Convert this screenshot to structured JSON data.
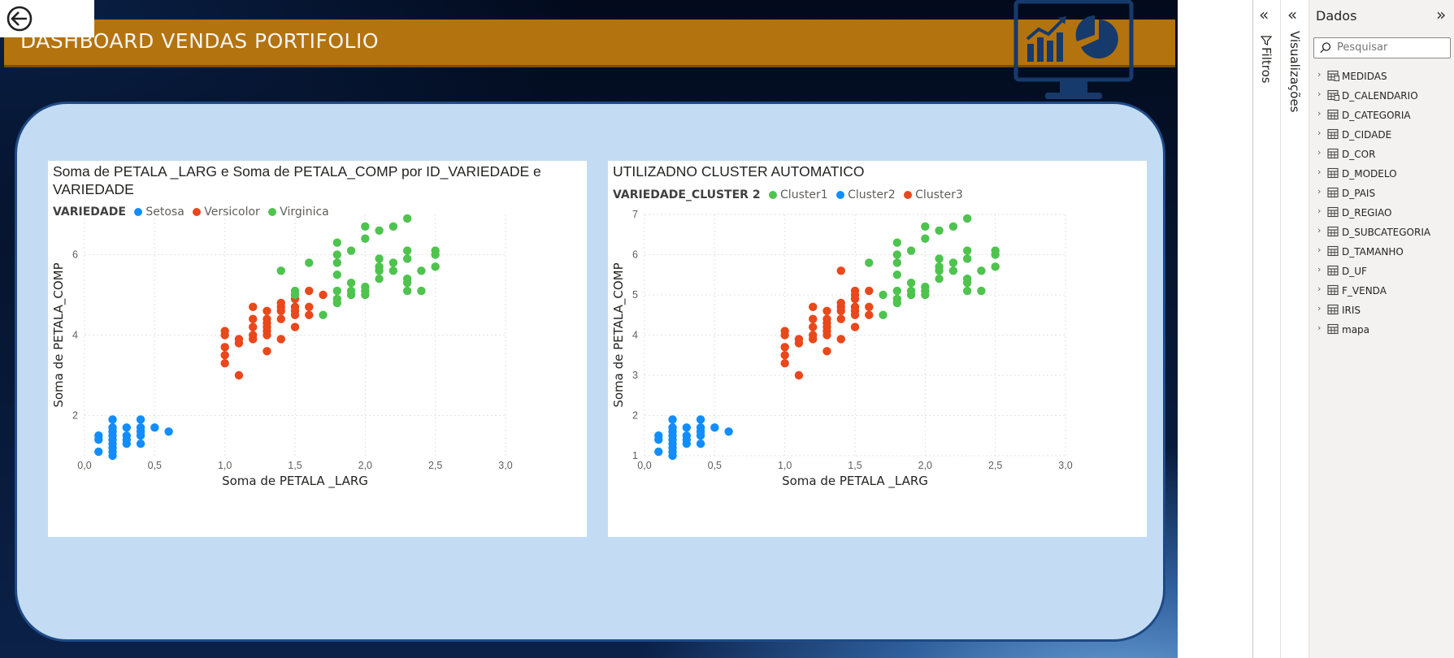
{
  "report": {
    "banner_title": "DASHBOARD VENDAS PORTIFOLIO"
  },
  "chart_data": [
    {
      "type": "scatter",
      "title": "Soma de PETALA _LARG e Soma de PETALA_COMP por ID_VARIEDADE e VARIEDADE",
      "xlabel": "Soma de PETALA _LARG",
      "ylabel": "Soma de PETALA_COMP",
      "legend_title": "VARIEDADE",
      "xlim": [
        0,
        3
      ],
      "ylim": [
        1,
        7
      ],
      "x_ticks": [
        "0,0",
        "0,5",
        "1,0",
        "1,5",
        "2,0",
        "2,5",
        "3,0"
      ],
      "y_ticks": [
        "2",
        "4",
        "6"
      ],
      "grid": true,
      "series": [
        {
          "name": "Setosa",
          "color": "#118dff",
          "points": [
            [
              0.1,
              1.5
            ],
            [
              0.1,
              1.4
            ],
            [
              0.1,
              1.1
            ],
            [
              0.2,
              1.9
            ],
            [
              0.2,
              1.7
            ],
            [
              0.2,
              1.6
            ],
            [
              0.2,
              1.5
            ],
            [
              0.2,
              1.4
            ],
            [
              0.2,
              1.3
            ],
            [
              0.2,
              1.2
            ],
            [
              0.2,
              1.1
            ],
            [
              0.2,
              1.0
            ],
            [
              0.3,
              1.7
            ],
            [
              0.3,
              1.5
            ],
            [
              0.3,
              1.4
            ],
            [
              0.3,
              1.3
            ],
            [
              0.4,
              1.9
            ],
            [
              0.4,
              1.7
            ],
            [
              0.4,
              1.6
            ],
            [
              0.4,
              1.5
            ],
            [
              0.4,
              1.3
            ],
            [
              0.5,
              1.7
            ],
            [
              0.6,
              1.6
            ]
          ]
        },
        {
          "name": "Versicolor",
          "color": "#e8481c",
          "points": [
            [
              1.0,
              4.1
            ],
            [
              1.0,
              4.0
            ],
            [
              1.0,
              3.7
            ],
            [
              1.0,
              3.5
            ],
            [
              1.0,
              3.3
            ],
            [
              1.1,
              3.9
            ],
            [
              1.1,
              3.8
            ],
            [
              1.1,
              3.0
            ],
            [
              1.2,
              4.7
            ],
            [
              1.2,
              4.4
            ],
            [
              1.2,
              4.2
            ],
            [
              1.2,
              4.0
            ],
            [
              1.2,
              3.9
            ],
            [
              1.3,
              4.6
            ],
            [
              1.3,
              4.4
            ],
            [
              1.3,
              4.3
            ],
            [
              1.3,
              4.2
            ],
            [
              1.3,
              4.1
            ],
            [
              1.3,
              4.0
            ],
            [
              1.3,
              3.6
            ],
            [
              1.4,
              4.8
            ],
            [
              1.4,
              4.7
            ],
            [
              1.4,
              4.6
            ],
            [
              1.4,
              4.4
            ],
            [
              1.4,
              3.9
            ],
            [
              1.5,
              5.0
            ],
            [
              1.5,
              4.9
            ],
            [
              1.5,
              4.7
            ],
            [
              1.5,
              4.6
            ],
            [
              1.5,
              4.5
            ],
            [
              1.5,
              4.2
            ],
            [
              1.6,
              5.1
            ],
            [
              1.6,
              4.7
            ],
            [
              1.6,
              4.5
            ],
            [
              1.7,
              5.0
            ]
          ]
        },
        {
          "name": "Virginica",
          "color": "#4ec34e",
          "points": [
            [
              1.4,
              5.6
            ],
            [
              1.5,
              5.1
            ],
            [
              1.5,
              5.0
            ],
            [
              1.6,
              5.8
            ],
            [
              1.7,
              4.5
            ],
            [
              1.8,
              6.3
            ],
            [
              1.8,
              6.0
            ],
            [
              1.8,
              5.8
            ],
            [
              1.8,
              5.5
            ],
            [
              1.8,
              5.1
            ],
            [
              1.8,
              4.9
            ],
            [
              1.8,
              4.8
            ],
            [
              1.9,
              6.1
            ],
            [
              1.9,
              5.3
            ],
            [
              1.9,
              5.1
            ],
            [
              1.9,
              5.0
            ],
            [
              2.0,
              6.7
            ],
            [
              2.0,
              6.4
            ],
            [
              2.0,
              5.2
            ],
            [
              2.0,
              5.1
            ],
            [
              2.0,
              5.0
            ],
            [
              2.1,
              6.6
            ],
            [
              2.1,
              5.9
            ],
            [
              2.1,
              5.7
            ],
            [
              2.1,
              5.6
            ],
            [
              2.1,
              5.4
            ],
            [
              2.2,
              6.7
            ],
            [
              2.2,
              5.8
            ],
            [
              2.2,
              5.6
            ],
            [
              2.3,
              6.9
            ],
            [
              2.3,
              6.1
            ],
            [
              2.3,
              5.9
            ],
            [
              2.3,
              5.4
            ],
            [
              2.3,
              5.3
            ],
            [
              2.3,
              5.1
            ],
            [
              2.4,
              5.6
            ],
            [
              2.4,
              5.1
            ],
            [
              2.5,
              6.1
            ],
            [
              2.5,
              6.0
            ],
            [
              2.5,
              5.7
            ]
          ]
        }
      ]
    },
    {
      "type": "scatter",
      "title": "UTILIZADNO CLUSTER AUTOMATICO",
      "xlabel": "Soma de PETALA _LARG",
      "ylabel": "Soma de PETALA_COMP",
      "legend_title": "VARIEDADE_CLUSTER 2",
      "xlim": [
        0,
        3
      ],
      "ylim": [
        1,
        7
      ],
      "x_ticks": [
        "0,0",
        "0,5",
        "1,0",
        "1,5",
        "2,0",
        "2,5",
        "3,0"
      ],
      "y_ticks": [
        "1",
        "2",
        "3",
        "4",
        "5",
        "6",
        "7"
      ],
      "grid": true,
      "series": [
        {
          "name": "Cluster1",
          "color": "#4ec34e",
          "points": [
            [
              1.6,
              5.8
            ],
            [
              1.7,
              5.0
            ],
            [
              1.7,
              4.5
            ],
            [
              1.8,
              6.3
            ],
            [
              1.8,
              6.0
            ],
            [
              1.8,
              5.8
            ],
            [
              1.8,
              5.5
            ],
            [
              1.8,
              5.1
            ],
            [
              1.8,
              4.9
            ],
            [
              1.8,
              4.8
            ],
            [
              1.9,
              6.1
            ],
            [
              1.9,
              5.3
            ],
            [
              1.9,
              5.1
            ],
            [
              1.9,
              5.0
            ],
            [
              2.0,
              6.7
            ],
            [
              2.0,
              6.4
            ],
            [
              2.0,
              5.2
            ],
            [
              2.0,
              5.1
            ],
            [
              2.0,
              5.0
            ],
            [
              2.1,
              6.6
            ],
            [
              2.1,
              5.9
            ],
            [
              2.1,
              5.7
            ],
            [
              2.1,
              5.6
            ],
            [
              2.1,
              5.4
            ],
            [
              2.2,
              6.7
            ],
            [
              2.2,
              5.8
            ],
            [
              2.2,
              5.6
            ],
            [
              2.3,
              6.9
            ],
            [
              2.3,
              6.1
            ],
            [
              2.3,
              5.9
            ],
            [
              2.3,
              5.4
            ],
            [
              2.3,
              5.3
            ],
            [
              2.3,
              5.1
            ],
            [
              2.4,
              5.6
            ],
            [
              2.4,
              5.1
            ],
            [
              2.5,
              6.1
            ],
            [
              2.5,
              6.0
            ],
            [
              2.5,
              5.7
            ]
          ]
        },
        {
          "name": "Cluster2",
          "color": "#118dff",
          "points": [
            [
              0.1,
              1.5
            ],
            [
              0.1,
              1.4
            ],
            [
              0.1,
              1.1
            ],
            [
              0.2,
              1.9
            ],
            [
              0.2,
              1.7
            ],
            [
              0.2,
              1.6
            ],
            [
              0.2,
              1.5
            ],
            [
              0.2,
              1.4
            ],
            [
              0.2,
              1.3
            ],
            [
              0.2,
              1.2
            ],
            [
              0.2,
              1.1
            ],
            [
              0.2,
              1.0
            ],
            [
              0.3,
              1.7
            ],
            [
              0.3,
              1.5
            ],
            [
              0.3,
              1.4
            ],
            [
              0.3,
              1.3
            ],
            [
              0.4,
              1.9
            ],
            [
              0.4,
              1.7
            ],
            [
              0.4,
              1.6
            ],
            [
              0.4,
              1.5
            ],
            [
              0.4,
              1.3
            ],
            [
              0.5,
              1.7
            ],
            [
              0.6,
              1.6
            ]
          ]
        },
        {
          "name": "Cluster3",
          "color": "#e8481c",
          "points": [
            [
              1.0,
              4.1
            ],
            [
              1.0,
              4.0
            ],
            [
              1.0,
              3.7
            ],
            [
              1.0,
              3.5
            ],
            [
              1.0,
              3.3
            ],
            [
              1.1,
              3.9
            ],
            [
              1.1,
              3.8
            ],
            [
              1.1,
              3.0
            ],
            [
              1.2,
              4.7
            ],
            [
              1.2,
              4.4
            ],
            [
              1.2,
              4.2
            ],
            [
              1.2,
              4.0
            ],
            [
              1.2,
              3.9
            ],
            [
              1.3,
              4.6
            ],
            [
              1.3,
              4.4
            ],
            [
              1.3,
              4.3
            ],
            [
              1.3,
              4.2
            ],
            [
              1.3,
              4.1
            ],
            [
              1.3,
              4.0
            ],
            [
              1.3,
              3.6
            ],
            [
              1.4,
              5.6
            ],
            [
              1.4,
              4.8
            ],
            [
              1.4,
              4.7
            ],
            [
              1.4,
              4.6
            ],
            [
              1.4,
              4.4
            ],
            [
              1.4,
              3.9
            ],
            [
              1.5,
              5.1
            ],
            [
              1.5,
              5.0
            ],
            [
              1.5,
              4.9
            ],
            [
              1.5,
              4.7
            ],
            [
              1.5,
              4.6
            ],
            [
              1.5,
              4.5
            ],
            [
              1.5,
              4.2
            ],
            [
              1.6,
              5.1
            ],
            [
              1.6,
              4.7
            ],
            [
              1.6,
              4.5
            ]
          ]
        }
      ]
    }
  ],
  "panes": {
    "filters_label": "Filtros",
    "visualizations_label": "Visualizações",
    "data": {
      "title": "Dados",
      "search_placeholder": "Pesquisar",
      "tables": [
        {
          "name": "MEDIDAS",
          "icon": "measure-table-icon"
        },
        {
          "name": "D_CALENDARIO",
          "icon": "calendar-table-icon"
        },
        {
          "name": "D_CATEGORIA",
          "icon": "table-icon"
        },
        {
          "name": "D_CIDADE",
          "icon": "table-icon"
        },
        {
          "name": "D_COR",
          "icon": "table-icon"
        },
        {
          "name": "D_MODELO",
          "icon": "table-icon"
        },
        {
          "name": "D_PAIS",
          "icon": "table-icon"
        },
        {
          "name": "D_REGIAO",
          "icon": "table-icon"
        },
        {
          "name": "D_SUBCATEGORIA",
          "icon": "table-icon"
        },
        {
          "name": "D_TAMANHO",
          "icon": "table-icon"
        },
        {
          "name": "D_UF",
          "icon": "table-icon"
        },
        {
          "name": "F_VENDA",
          "icon": "table-icon"
        },
        {
          "name": "IRIS",
          "icon": "table-icon"
        },
        {
          "name": "mapa",
          "icon": "table-icon"
        }
      ]
    }
  }
}
